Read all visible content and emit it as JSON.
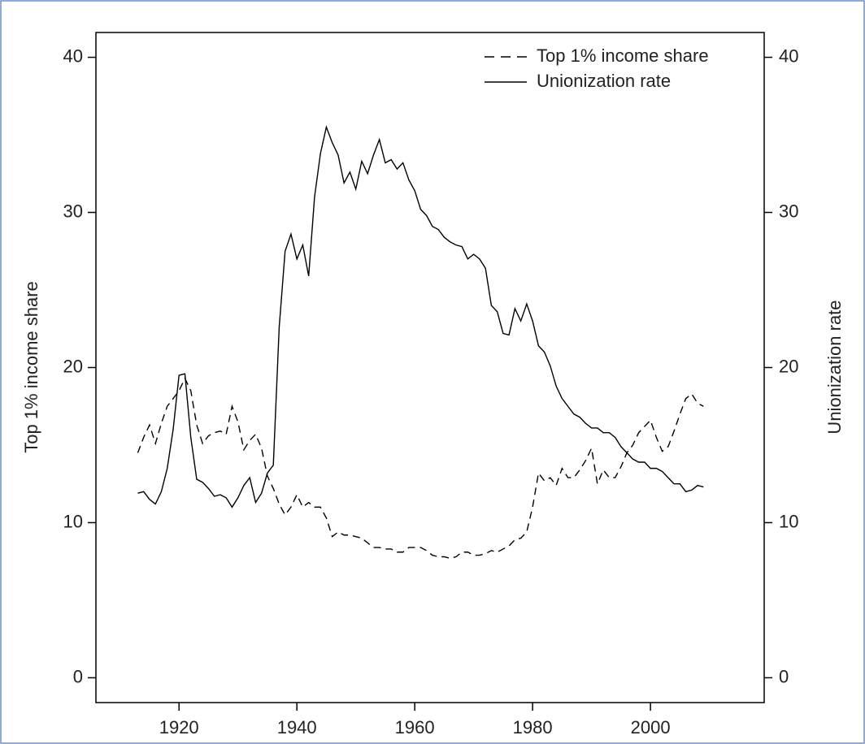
{
  "chart_data": {
    "type": "line",
    "x": [
      1913,
      1914,
      1915,
      1916,
      1917,
      1918,
      1919,
      1920,
      1921,
      1922,
      1923,
      1924,
      1925,
      1926,
      1927,
      1928,
      1929,
      1930,
      1931,
      1932,
      1933,
      1934,
      1935,
      1936,
      1937,
      1938,
      1939,
      1940,
      1941,
      1942,
      1943,
      1944,
      1945,
      1946,
      1947,
      1948,
      1949,
      1950,
      1951,
      1952,
      1953,
      1954,
      1955,
      1956,
      1957,
      1958,
      1959,
      1960,
      1961,
      1962,
      1963,
      1964,
      1965,
      1966,
      1967,
      1968,
      1969,
      1970,
      1971,
      1972,
      1973,
      1974,
      1975,
      1976,
      1977,
      1978,
      1979,
      1980,
      1981,
      1982,
      1983,
      1984,
      1985,
      1986,
      1987,
      1988,
      1989,
      1990,
      1991,
      1992,
      1993,
      1994,
      1995,
      1996,
      1997,
      1998,
      1999,
      2000,
      2001,
      2002,
      2003,
      2004,
      2005,
      2006,
      2007,
      2008,
      2009
    ],
    "series": [
      {
        "name": "Top 1% income share",
        "color": "#000000",
        "style": "dashed",
        "values": [
          14.5,
          15.5,
          16.3,
          15.1,
          16.4,
          17.5,
          18.0,
          18.5,
          19.3,
          18.5,
          16.3,
          15.1,
          15.6,
          15.8,
          15.9,
          15.7,
          17.5,
          16.5,
          14.7,
          15.3,
          15.7,
          14.8,
          13.0,
          12.2,
          11.2,
          10.5,
          11.0,
          11.8,
          11.0,
          11.3,
          11.0,
          11.0,
          10.3,
          9.1,
          9.4,
          9.2,
          9.2,
          9.1,
          9.0,
          8.7,
          8.4,
          8.4,
          8.3,
          8.3,
          8.1,
          8.1,
          8.4,
          8.4,
          8.4,
          8.2,
          7.9,
          7.8,
          7.8,
          7.7,
          7.8,
          8.1,
          8.1,
          7.9,
          7.9,
          8.0,
          8.2,
          8.1,
          8.3,
          8.5,
          8.9,
          9.0,
          9.4,
          11.0,
          13.2,
          12.7,
          12.9,
          12.4,
          13.5,
          12.9,
          12.9,
          13.4,
          14.0,
          14.8,
          12.5,
          13.4,
          12.9,
          12.9,
          13.6,
          14.5,
          15.0,
          15.8,
          16.2,
          16.6,
          15.5,
          14.6,
          14.9,
          15.9,
          17.0,
          18.0,
          18.3,
          17.7,
          17.5
        ]
      },
      {
        "name": "Unionization rate",
        "color": "#000000",
        "style": "solid",
        "axis": "y2",
        "values": [
          11.9,
          12.0,
          11.5,
          11.2,
          12.0,
          13.5,
          16.0,
          19.5,
          19.6,
          15.5,
          12.8,
          12.6,
          12.2,
          11.7,
          11.8,
          11.6,
          11.0,
          11.6,
          12.4,
          12.9,
          11.3,
          11.9,
          13.2,
          13.7,
          22.6,
          27.5,
          28.6,
          27.0,
          27.9,
          25.9,
          31.0,
          33.8,
          35.5,
          34.5,
          33.7,
          31.9,
          32.6,
          31.5,
          33.3,
          32.5,
          33.7,
          34.7,
          33.2,
          33.4,
          32.8,
          33.2,
          32.1,
          31.4,
          30.2,
          29.8,
          29.1,
          28.9,
          28.4,
          28.1,
          27.9,
          27.8,
          27.0,
          27.3,
          27.0,
          26.4,
          24.0,
          23.6,
          22.2,
          22.1,
          23.8,
          23.0,
          24.1,
          23.0,
          21.4,
          21.0,
          20.1,
          18.8,
          18.0,
          17.5,
          17.0,
          16.8,
          16.4,
          16.1,
          16.1,
          15.8,
          15.8,
          15.5,
          14.9,
          14.5,
          14.1,
          13.9,
          13.9,
          13.5,
          13.5,
          13.3,
          12.9,
          12.5,
          12.5,
          12.0,
          12.1,
          12.4,
          12.3
        ]
      }
    ],
    "y_label": "Top 1% income share",
    "y2_label": "Unionization rate",
    "xlim": [
      1905.9,
      2019.3
    ],
    "xticks": [
      1920,
      1940,
      1960,
      1980,
      2000
    ],
    "ylim": [
      -1.6,
      41.6
    ],
    "yticks": [
      0,
      10,
      20,
      30,
      40
    ],
    "y2lim": [
      -1.6,
      41.6
    ],
    "y2ticks": [
      0,
      10,
      20,
      30,
      40
    ],
    "legend": "upper right"
  }
}
